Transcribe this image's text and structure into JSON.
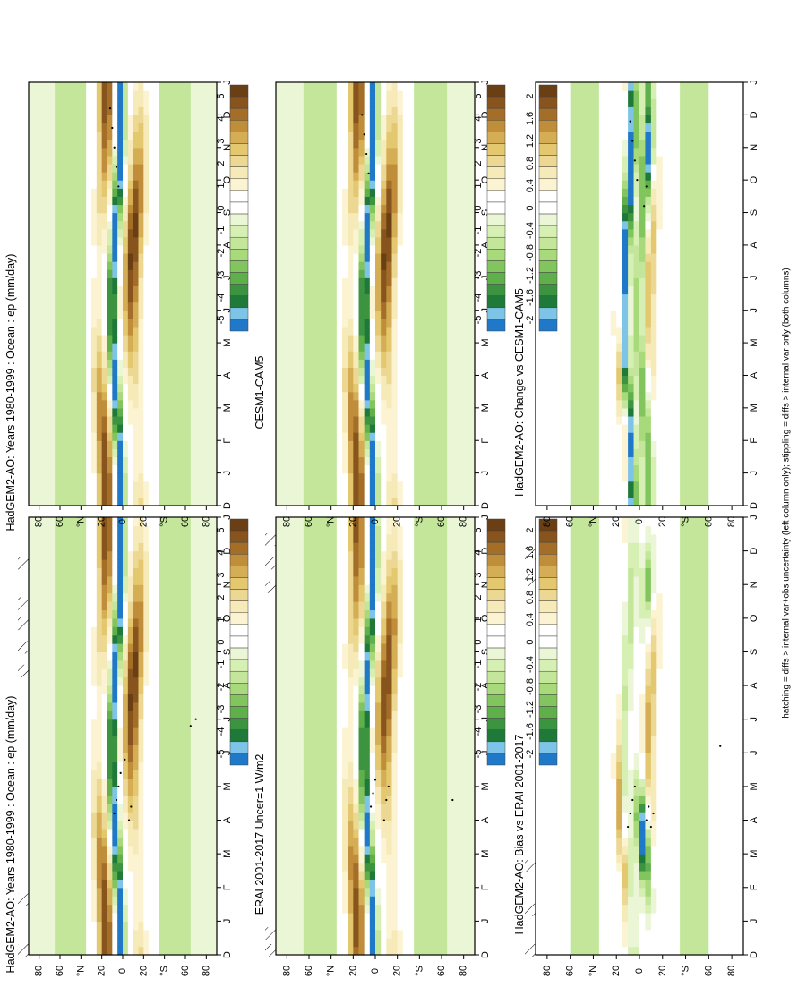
{
  "figure": {
    "footnote": "hatching = diffs > internal var+obs uncertainty (left column only); stippling = diffs > internal var only (both columns)",
    "colors": {
      "blue": "#1f78c8",
      "light_blue": "#7ec3e8",
      "dark_green": "#1f7a3a",
      "green": "#5fb04a",
      "light_green": "#a8d97a",
      "pale_green": "#d6efb2",
      "white": "#ffffff",
      "pale_tan": "#f6ebb8",
      "tan": "#e4c86f",
      "brown": "#c08d3a",
      "dark_brown": "#6a3f14"
    }
  },
  "chart_data": [
    {
      "id": "p1",
      "type": "heatmap",
      "position": "top-left",
      "title": "HadGEM2-AO: Years 1980-1999 : Ocean : ep (mm/day)",
      "time_ticks": [
        "D",
        "J",
        "F",
        "M",
        "A",
        "M",
        "J",
        "J",
        "A",
        "S",
        "O",
        "N",
        "D",
        "J"
      ],
      "lat_tick_values": [
        80,
        60,
        40,
        20,
        0,
        -20,
        -40,
        -60,
        -80
      ],
      "lat_tick_labels": [
        "80",
        "60",
        "°N",
        "20",
        "0",
        "20",
        "°S",
        "60",
        "80"
      ],
      "colorbar": {
        "labels": [
          "5",
          "4",
          "3",
          "2",
          "1",
          "0",
          "-1",
          "-2",
          "-3",
          "-4",
          "-5"
        ],
        "range": [
          -5,
          5
        ]
      },
      "field": "climatology",
      "hatch_months": [
        0,
        1.5,
        8.3,
        9,
        9.7,
        10.3,
        11.5
      ],
      "stipple": [
        [
          4.2,
          8
        ],
        [
          4.6,
          6
        ],
        [
          5.0,
          4
        ],
        [
          5.4,
          2
        ],
        [
          5.8,
          -2
        ],
        [
          4.0,
          -6
        ],
        [
          4.4,
          -8
        ],
        [
          6.8,
          -65
        ],
        [
          7.0,
          -70
        ]
      ]
    },
    {
      "id": "p2",
      "type": "heatmap",
      "position": "top-right",
      "title": "HadGEM2-AO: Years 1980-1999 : Ocean : ep (mm/day)",
      "time_ticks": [
        "D",
        "J",
        "F",
        "M",
        "A",
        "M",
        "J",
        "J",
        "A",
        "S",
        "O",
        "N",
        "D",
        "J"
      ],
      "lat_tick_values": [
        80,
        60,
        40,
        20,
        0,
        -20,
        -40,
        -60,
        -80
      ],
      "lat_tick_labels": [
        "80",
        "60",
        "°N",
        "20",
        "0",
        "20",
        "°S",
        "60",
        "80"
      ],
      "colorbar": {
        "labels": [
          "5",
          "4",
          "3",
          "2",
          "1",
          "0",
          "-1",
          "-2",
          "-3",
          "-4",
          "-5"
        ],
        "range": [
          -5,
          5
        ]
      },
      "field": "climatology",
      "hatch_months": [],
      "stipple": [
        [
          9.8,
          4
        ],
        [
          10.4,
          6
        ],
        [
          11.0,
          8
        ],
        [
          11.6,
          10
        ],
        [
          12.2,
          12
        ]
      ]
    },
    {
      "id": "p3",
      "type": "heatmap",
      "position": "middle-left",
      "title": "ERAI 2001-2017 Uncer=1 W/m2",
      "time_ticks": [
        "D",
        "J",
        "F",
        "M",
        "A",
        "M",
        "J",
        "J",
        "A",
        "S",
        "O",
        "N",
        "D",
        "J"
      ],
      "lat_tick_values": [
        80,
        60,
        40,
        20,
        0,
        -20,
        -40,
        -60,
        -80
      ],
      "lat_tick_labels": [
        "80",
        "60",
        "°N",
        "20",
        "0",
        "20",
        "°S",
        "60",
        "80"
      ],
      "colorbar": {
        "labels": [
          "5",
          "4",
          "3",
          "2",
          "1",
          "0",
          "-1",
          "-2",
          "-3",
          "-4",
          "-5"
        ],
        "range": [
          -5,
          5
        ]
      },
      "field": "climatology_obs",
      "hatch_months": [
        0,
        0.5,
        10.8,
        11.5,
        12.2
      ],
      "stipple": [
        [
          4.4,
          4
        ],
        [
          4.8,
          2
        ],
        [
          5.2,
          0
        ],
        [
          4.0,
          -8
        ],
        [
          4.6,
          -10
        ],
        [
          5.0,
          -12
        ],
        [
          4.6,
          -70
        ]
      ]
    },
    {
      "id": "p4",
      "type": "heatmap",
      "position": "middle-right",
      "title": "CESM1-CAM5",
      "time_ticks": [
        "D",
        "J",
        "F",
        "M",
        "A",
        "M",
        "J",
        "J",
        "A",
        "S",
        "O",
        "N",
        "D",
        "J"
      ],
      "lat_tick_values": [
        80,
        60,
        40,
        20,
        0,
        -20,
        -40,
        -60,
        -80
      ],
      "lat_tick_labels": [
        "80",
        "60",
        "°N",
        "20",
        "0",
        "20",
        "°S",
        "60",
        "80"
      ],
      "colorbar": {
        "labels": [
          "5",
          "4",
          "3",
          "2",
          "1",
          "0",
          "-1",
          "-2",
          "-3",
          "-4",
          "-5"
        ],
        "range": [
          -5,
          5
        ]
      },
      "field": "climatology",
      "hatch_months": [],
      "stipple": [
        [
          10.2,
          6
        ],
        [
          10.8,
          8
        ],
        [
          11.4,
          10
        ],
        [
          12.0,
          12
        ]
      ]
    },
    {
      "id": "p5",
      "type": "heatmap",
      "position": "bottom-left",
      "title": "HadGEM2-AO: Bias vs ERAI 2001-2017",
      "time_ticks": [
        "D",
        "J",
        "F",
        "M",
        "A",
        "M",
        "J",
        "J",
        "A",
        "S",
        "O",
        "N",
        "D",
        "J"
      ],
      "lat_tick_values": [
        80,
        60,
        40,
        20,
        0,
        -20,
        -40,
        -60,
        -80
      ],
      "lat_tick_labels": [
        "80",
        "60",
        "°N",
        "20",
        "0",
        "20",
        "°S",
        "60",
        "80"
      ],
      "colorbar": {
        "labels": [
          "2",
          "1.6",
          "1.2",
          "0.8",
          "0.4",
          "0",
          "-0.4",
          "-0.8",
          "-1.2",
          "-1.6",
          "-2"
        ],
        "range": [
          -2,
          2
        ]
      },
      "field": "bias",
      "hatch_months": [
        0,
        1.2,
        2.5,
        11.0,
        11.8
      ],
      "stipple": [
        [
          3.8,
          10
        ],
        [
          4.2,
          8
        ],
        [
          4.6,
          6
        ],
        [
          5.0,
          4
        ],
        [
          4.0,
          -6
        ],
        [
          4.4,
          -8
        ],
        [
          3.8,
          -10
        ],
        [
          4.2,
          -12
        ],
        [
          6.2,
          -70
        ]
      ]
    },
    {
      "id": "p6",
      "type": "heatmap",
      "position": "bottom-right",
      "title": "HadGEM2-AO: Change vs CESM1-CAM5",
      "time_ticks": [
        "D",
        "J",
        "F",
        "M",
        "A",
        "M",
        "J",
        "J",
        "A",
        "S",
        "O",
        "N",
        "D",
        "J"
      ],
      "lat_tick_values": [
        80,
        60,
        40,
        20,
        0,
        -20,
        -40,
        -60,
        -80
      ],
      "lat_tick_labels": [
        "80",
        "60",
        "°N",
        "20",
        "0",
        "20",
        "°S",
        "60",
        "80"
      ],
      "colorbar": {
        "labels": [
          "2",
          "1.6",
          "1.2",
          "0.8",
          "0.4",
          "0",
          "-0.4",
          "-0.8",
          "-1.2",
          "-1.6",
          "-2"
        ],
        "range": [
          -2,
          2
        ]
      },
      "field": "change",
      "hatch_months": [],
      "stipple": [
        [
          10.0,
          2
        ],
        [
          10.6,
          4
        ],
        [
          11.2,
          6
        ],
        [
          11.8,
          8
        ],
        [
          9.2,
          -4
        ],
        [
          9.8,
          -6
        ]
      ]
    }
  ]
}
